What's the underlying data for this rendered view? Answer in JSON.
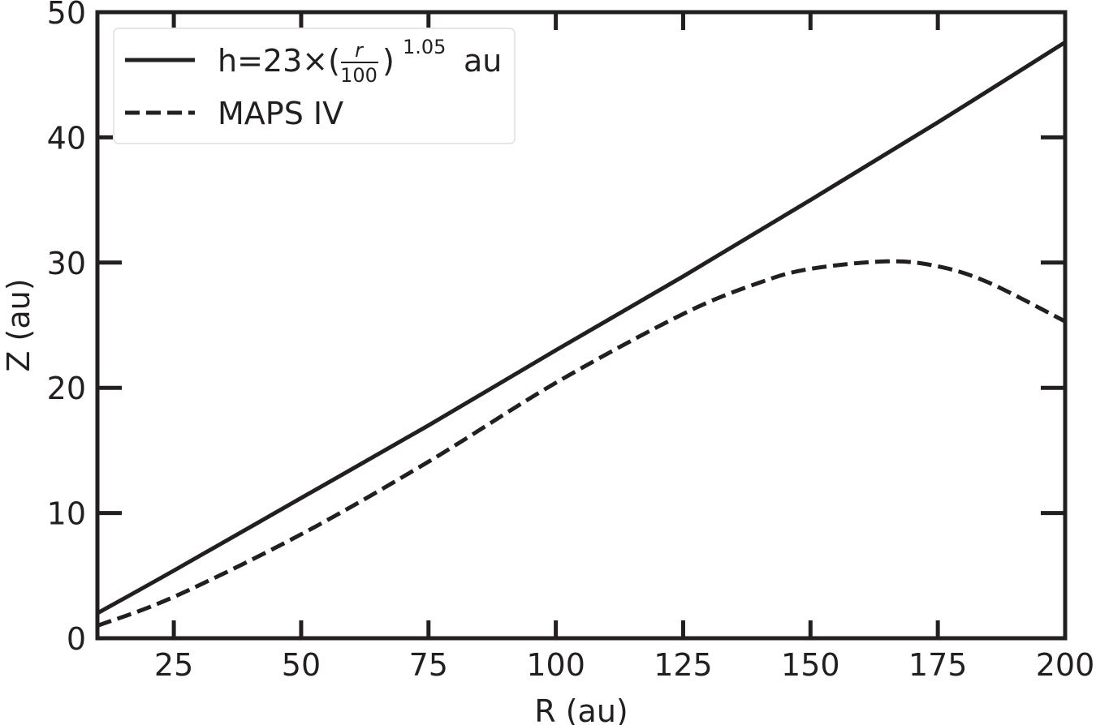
{
  "chart_data": {
    "type": "line",
    "xlabel": "R (au)",
    "ylabel": "Z (au)",
    "xlim": [
      10,
      200
    ],
    "ylim": [
      0,
      50
    ],
    "xticks": [
      25,
      50,
      75,
      100,
      125,
      150,
      175,
      200
    ],
    "yticks": [
      0,
      10,
      20,
      30,
      40,
      50
    ],
    "grid": false,
    "legend_position": "top-left",
    "colors": {
      "line": "#231f20",
      "axis": "#231f20",
      "legend_border": "#e6e6e6"
    },
    "legend": {
      "solid_prefix": "h=23×(",
      "solid_numerator": "r",
      "solid_denominator": "100",
      "solid_close": ")",
      "solid_exponent": "1.05",
      "solid_suffix": "au",
      "dashed_label": "MAPS IV"
    },
    "series": [
      {
        "style": "solid",
        "x": [
          10,
          25,
          50,
          75,
          100,
          125,
          150,
          175,
          200
        ],
        "y": [
          2.0,
          5.4,
          11.2,
          17.0,
          23.0,
          28.9,
          35.0,
          41.2,
          47.6
        ]
      },
      {
        "name": "MAPS IV",
        "style": "dashed",
        "x": [
          10,
          25,
          50,
          75,
          100,
          125,
          140,
          150,
          165,
          175,
          185,
          200
        ],
        "y": [
          1.0,
          3.3,
          8.3,
          14.1,
          20.4,
          25.9,
          28.4,
          29.5,
          30.1,
          29.7,
          28.4,
          25.3
        ]
      }
    ]
  }
}
